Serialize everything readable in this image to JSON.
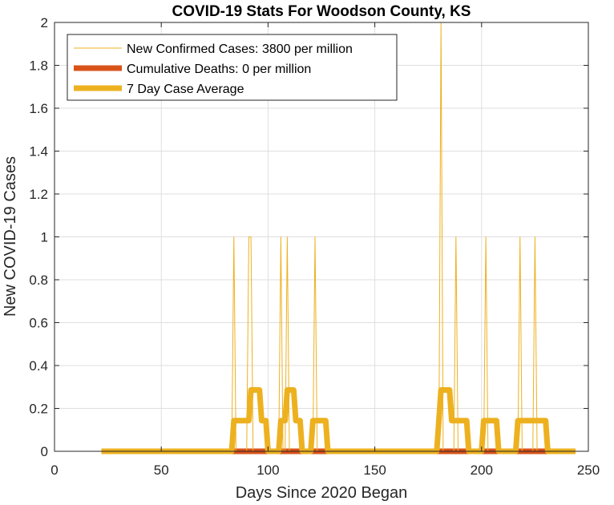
{
  "chart_data": {
    "type": "line",
    "title": "COVID-19 Stats For Woodson County, KS",
    "xlabel": "Days Since 2020 Began",
    "ylabel": "New COVID-19 Cases",
    "xlim": [
      0,
      250
    ],
    "ylim": [
      0,
      2
    ],
    "xticks": [
      "0",
      "50",
      "100",
      "150",
      "200",
      "250"
    ],
    "yticks": [
      "0",
      "0.2",
      "0.4",
      "0.6",
      "0.8",
      "1",
      "1.2",
      "1.4",
      "1.6",
      "1.8",
      "2"
    ],
    "grid": true,
    "legend_position": "top-left",
    "series": [
      {
        "name": "New Confirmed Cases: 3800 per million",
        "color": "#EDB120",
        "style": "thin",
        "x": [
          22,
          83,
          84,
          85,
          90,
          91,
          92,
          93,
          105,
          106,
          107,
          108,
          109,
          110,
          121,
          122,
          123,
          180,
          181,
          182,
          187,
          188,
          189,
          201,
          202,
          203,
          217,
          218,
          219,
          224,
          225,
          226,
          244
        ],
        "y": [
          0,
          0,
          1,
          0,
          0,
          1,
          1,
          0,
          0,
          1,
          0,
          0,
          1,
          0,
          0,
          1,
          0,
          0,
          2,
          0,
          0,
          1,
          0,
          0,
          1,
          0,
          0,
          1,
          0,
          0,
          1,
          0,
          0
        ]
      },
      {
        "name": "Cumulative Deaths: 0 per million",
        "color": "#D95319",
        "style": "thick",
        "x": [
          22,
          244
        ],
        "y": [
          0,
          0
        ]
      },
      {
        "name": "7 Day Case Average",
        "color": "#EDB120",
        "style": "thick",
        "x": [
          22,
          83,
          84,
          90,
          91,
          92,
          96,
          97,
          99,
          100,
          105,
          106,
          108,
          109,
          112,
          113,
          115,
          116,
          120,
          121,
          127,
          128,
          179,
          180,
          181,
          185,
          186,
          188,
          189,
          193,
          194,
          200,
          201,
          207,
          208,
          216,
          217,
          223,
          224,
          230,
          231,
          244
        ],
        "y": [
          0,
          0,
          0.143,
          0.143,
          0.143,
          0.286,
          0.286,
          0.143,
          0.143,
          0,
          0,
          0.143,
          0.143,
          0.286,
          0.286,
          0.143,
          0.143,
          0,
          0,
          0.143,
          0.143,
          0,
          0,
          0.143,
          0.286,
          0.286,
          0.143,
          0.143,
          0.143,
          0.143,
          0,
          0,
          0.143,
          0.143,
          0,
          0,
          0.143,
          0.143,
          0.143,
          0.143,
          0,
          0
        ]
      }
    ]
  }
}
